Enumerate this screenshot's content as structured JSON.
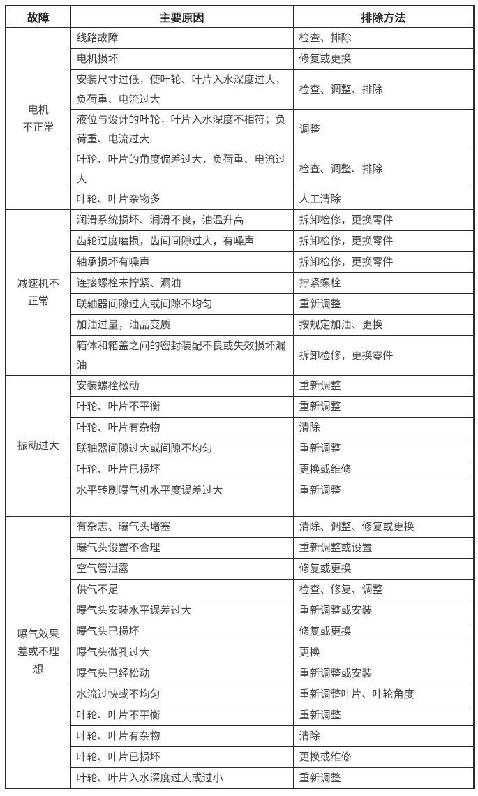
{
  "table": {
    "colors": {
      "border": "#2b2b2b",
      "text": "#3f3f3f",
      "header_text": "#262626",
      "background": "#ffffff"
    },
    "headers": [
      {
        "label": "故障"
      },
      {
        "label": "主要原因"
      },
      {
        "label": "排除方法"
      }
    ],
    "sections": [
      {
        "fault": "电机\n不正常",
        "rows": [
          {
            "cause": "线路故障",
            "solution": "检查、排除"
          },
          {
            "cause": "电机损坏",
            "solution": "修复或更换"
          },
          {
            "cause": "安装尺寸过低，使叶轮、叶片入水深度过大，负荷重、电流过大",
            "solution": "检查、调整、排除"
          },
          {
            "cause": "液位与设计的叶轮，叶片入水深度不相符；负荷重、电流过大",
            "solution": "调整"
          },
          {
            "cause": "叶轮、叶片的角度偏差过大，负荷重、电流过大",
            "solution": "检查、调整、排除"
          },
          {
            "cause": "叶轮、叶片杂物多",
            "solution": "人工清除"
          }
        ]
      },
      {
        "fault": "减速机不\n正常",
        "rows": [
          {
            "cause": "润滑系统损坏、润滑不良，油温升高",
            "solution": "拆卸检修，更换零件"
          },
          {
            "cause": "齿轮过度磨损，齿间间隙过大，有噪声",
            "solution": "拆卸检修，更换零件"
          },
          {
            "cause": "轴承损坏有噪声",
            "solution": "拆卸检修，更换零件"
          },
          {
            "cause": "连接螺栓未拧紧、漏油",
            "solution": "拧紧螺栓"
          },
          {
            "cause": "联轴器间隙过大或间隙不均匀",
            "solution": "重新调整"
          },
          {
            "cause": "加油过量，油品变质",
            "solution": "按规定加油、更换"
          },
          {
            "cause": "箱体和箱盖之间的密封装配不良或失效损坏漏油",
            "solution": "拆卸检修，更换零件"
          }
        ]
      },
      {
        "fault": "振动过大",
        "rows": [
          {
            "cause": "安装螺栓松动",
            "solution": "重新调整"
          },
          {
            "cause": "叶轮、叶片不平衡",
            "solution": "重新调整"
          },
          {
            "cause": "叶轮、叶片有杂物",
            "solution": "清除"
          },
          {
            "cause": "联轴器间隙过大或间隙不均匀",
            "solution": "重新调整"
          },
          {
            "cause": "叶轮、叶片已损坏",
            "solution": "更换或维修"
          },
          {
            "cause": "水平转刷曝气机水平度误差过大",
            "solution": "重新调整",
            "tall": true
          }
        ]
      },
      {
        "fault": "曝气效果\n差或不理\n想",
        "rows": [
          {
            "cause": "有杂志、曝气头堵塞",
            "solution": "清除、调整、修复或更换"
          },
          {
            "cause": "曝气头设置不合理",
            "solution": "重新调整或设置"
          },
          {
            "cause": "空气管泄露",
            "solution": "修复或更换"
          },
          {
            "cause": "供气不足",
            "solution": "检查、修复、调整"
          },
          {
            "cause": "曝气头安装水平误差过大",
            "solution": "重新调整或安装"
          },
          {
            "cause": "曝气头已损坏",
            "solution": "修复或更换"
          },
          {
            "cause": "曝气头微孔过大",
            "solution": "更换"
          },
          {
            "cause": "曝气头已经松动",
            "solution": "重新调整或安装"
          },
          {
            "cause": "水流过快或不均匀",
            "solution": "重新调整叶片、叶轮角度"
          },
          {
            "cause": "叶轮、叶片不平衡",
            "solution": "重新调整"
          },
          {
            "cause": "叶轮、叶片有杂物",
            "solution": "清除"
          },
          {
            "cause": "叶轮、叶片已损坏",
            "solution": "更换或维修"
          },
          {
            "cause": "叶轮、叶片入水深度过大或过小",
            "solution": "重新调整"
          }
        ]
      }
    ]
  }
}
